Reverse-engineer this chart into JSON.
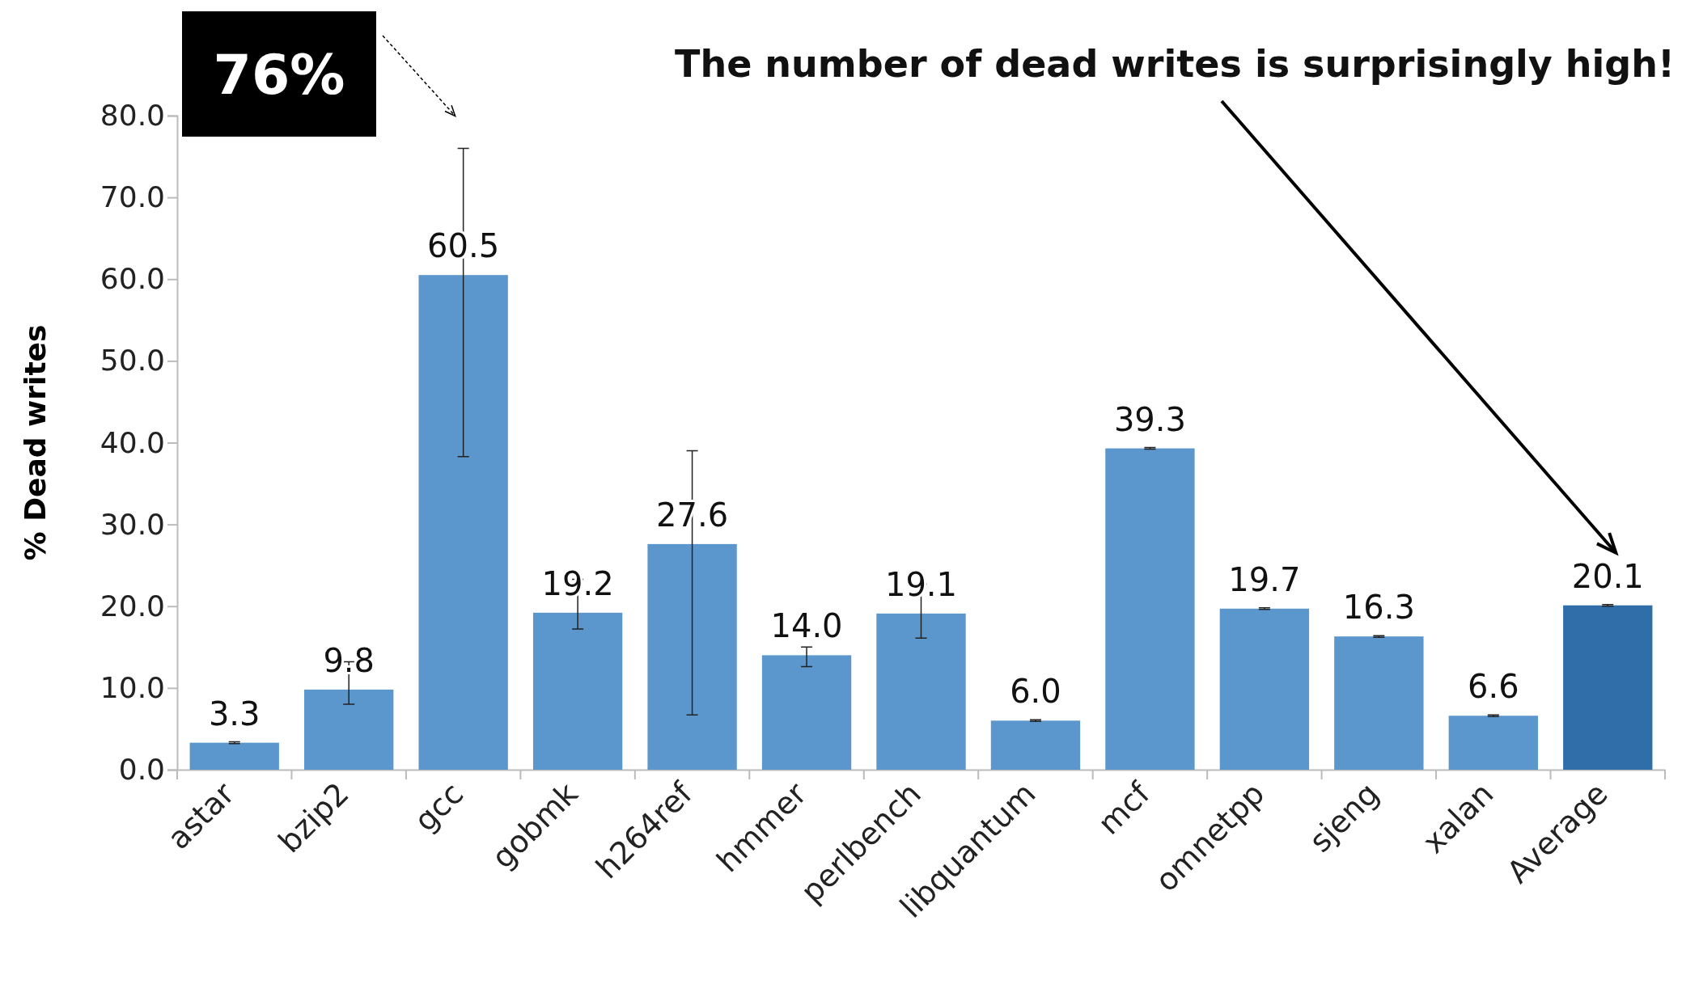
{
  "chart_data": {
    "type": "bar",
    "ylabel": "% Dead writes",
    "categories": [
      "astar",
      "bzip2",
      "gcc",
      "gobmk",
      "h264ref",
      "hmmer",
      "perlbench",
      "libquantum",
      "mcf",
      "omnetpp",
      "sjeng",
      "xalan",
      "Average"
    ],
    "values": [
      3.3,
      9.8,
      60.5,
      19.2,
      27.6,
      14.0,
      19.1,
      6.0,
      39.3,
      19.7,
      16.3,
      6.6,
      20.1
    ],
    "colors": [
      "#5b96cc",
      "#5b96cc",
      "#5b96cc",
      "#5b96cc",
      "#5b96cc",
      "#5b96cc",
      "#5b96cc",
      "#5b96cc",
      "#5b96cc",
      "#5b96cc",
      "#5b96cc",
      "#5b96cc",
      "#2f6ea8"
    ],
    "errors": [
      [
        3.2,
        3.4
      ],
      [
        8,
        13.2
      ],
      [
        38.3,
        76
      ],
      [
        17.2,
        23.3
      ],
      [
        6.7,
        39
      ],
      [
        12.6,
        15
      ],
      [
        16.1,
        22.7
      ],
      [
        5.9,
        6.1
      ],
      [
        39.2,
        39.4
      ],
      [
        19.6,
        19.8
      ],
      [
        16.2,
        16.4
      ],
      [
        6.5,
        6.7
      ],
      [
        20,
        20.2
      ]
    ],
    "value_labels": [
      "3.3",
      "9.8",
      "60.5",
      "19.2",
      "27.6",
      "14.0",
      "19.1",
      "6.0",
      "39.3",
      "19.7",
      "16.3",
      "6.6",
      "20.1"
    ],
    "ylim": [
      0,
      80
    ],
    "yticks": [
      {
        "value": 0,
        "label": "0.0"
      },
      {
        "value": 10,
        "label": "10.0"
      },
      {
        "value": 20,
        "label": "20.0"
      },
      {
        "value": 30,
        "label": "30.0"
      },
      {
        "value": 40,
        "label": "40.0"
      },
      {
        "value": 50,
        "label": "50.0"
      },
      {
        "value": 60,
        "label": "60.0"
      },
      {
        "value": 70,
        "label": "70.0"
      },
      {
        "value": 80,
        "label": "80.0"
      }
    ],
    "annotations": [
      {
        "text": "76%",
        "x": "gcc",
        "y": 76
      },
      "The number of dead writes is surprisingly high!"
    ],
    "grid": false
  }
}
